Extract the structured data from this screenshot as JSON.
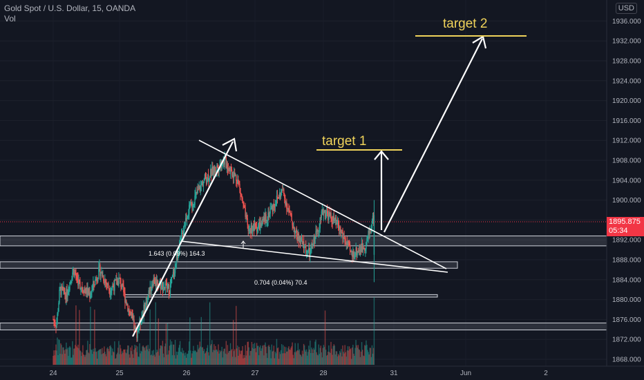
{
  "header": {
    "symbol_line": "Gold Spot / U.S. Dollar, 15, OANDA",
    "volume_label": "Vol",
    "currency": "USD"
  },
  "current_price": {
    "value": "1895.875",
    "countdown": "05:34",
    "price": 1895.875
  },
  "annotations": {
    "target1": "target 1",
    "target2": "target 2",
    "measure1": "1.643 (0.09%) 164.3",
    "measure2": "0.704 (0.04%) 70.4"
  },
  "colors": {
    "background": "#131722",
    "up": "#26a69a",
    "down": "#ef5350",
    "target": "#f0d35a",
    "drawing": "#ffffff",
    "price_tag": "#f23645"
  },
  "chart_data": {
    "type": "candlestick",
    "symbol": "Gold Spot / U.S. Dollar",
    "interval": "15",
    "ylim": [
      1866,
      1940
    ],
    "y_ticks": [
      "1868.000",
      "1872.000",
      "1876.000",
      "1880.000",
      "1884.000",
      "1888.000",
      "1892.000",
      "1896.000",
      "1900.000",
      "1904.000",
      "1908.000",
      "1912.000",
      "1916.000",
      "1920.000",
      "1924.000",
      "1928.000",
      "1932.000",
      "1936.000"
    ],
    "x_ticks": [
      "24",
      "25",
      "26",
      "27",
      "28",
      "31",
      "Jun",
      "2"
    ],
    "price_path": [
      {
        "t": 0,
        "p": 1876
      },
      {
        "t": 0.05,
        "p": 1875
      },
      {
        "t": 0.1,
        "p": 1882
      },
      {
        "t": 0.2,
        "p": 1881
      },
      {
        "t": 0.3,
        "p": 1886
      },
      {
        "t": 0.4,
        "p": 1883
      },
      {
        "t": 0.55,
        "p": 1881
      },
      {
        "t": 0.7,
        "p": 1886
      },
      {
        "t": 0.85,
        "p": 1882
      },
      {
        "t": 1.0,
        "p": 1884
      },
      {
        "t": 1.25,
        "p": 1873
      },
      {
        "t": 1.5,
        "p": 1884
      },
      {
        "t": 1.75,
        "p": 1882
      },
      {
        "t": 2.0,
        "p": 1897
      },
      {
        "t": 2.25,
        "p": 1904
      },
      {
        "t": 2.55,
        "p": 1908
      },
      {
        "t": 2.75,
        "p": 1904
      },
      {
        "t": 2.9,
        "p": 1894
      },
      {
        "t": 3.1,
        "p": 1895
      },
      {
        "t": 3.4,
        "p": 1902
      },
      {
        "t": 3.6,
        "p": 1893
      },
      {
        "t": 3.8,
        "p": 1889
      },
      {
        "t": 4.0,
        "p": 1898
      },
      {
        "t": 4.2,
        "p": 1895
      },
      {
        "t": 4.4,
        "p": 1889
      },
      {
        "t": 4.6,
        "p": 1891
      },
      {
        "t": 4.72,
        "p": 1897
      }
    ],
    "zones": [
      {
        "from": 1890.8,
        "to": 1892.8
      },
      {
        "from": 1886.3,
        "to": 1887.6
      },
      {
        "from": 1880.5,
        "to": 1881.0
      },
      {
        "from": 1873.9,
        "to": 1875.3
      }
    ],
    "targets": [
      {
        "name": "target 1",
        "price": 1910.8
      },
      {
        "name": "target 2",
        "price": 1933.6
      }
    ]
  }
}
